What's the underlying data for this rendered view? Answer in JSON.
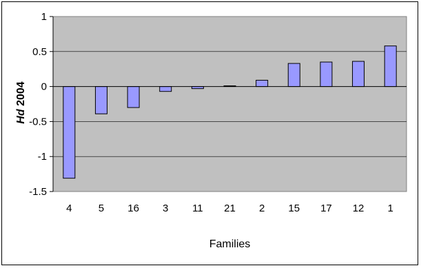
{
  "chart_data": {
    "type": "bar",
    "categories": [
      "4",
      "5",
      "16",
      "3",
      "11",
      "21",
      "2",
      "15",
      "17",
      "12",
      "1"
    ],
    "values": [
      -1.31,
      -0.39,
      -0.3,
      -0.07,
      -0.03,
      0.01,
      0.09,
      0.33,
      0.35,
      0.36,
      0.58
    ],
    "ylim": [
      -1.5,
      1
    ],
    "yticks": [
      "1",
      "0.5",
      "0",
      "-0.5",
      "-1",
      "-1.5"
    ],
    "ytick_values": [
      1,
      0.5,
      0,
      -0.5,
      -1,
      -1.5
    ],
    "xlabel": "Families",
    "ylabel_italic": "Hd",
    "ylabel_rest": " 2004",
    "grid": true,
    "colors": {
      "plot_bg": "#c0c0c0",
      "bar_fill": "#9999ff",
      "bar_stroke": "#000000",
      "grid": "#000000"
    }
  }
}
